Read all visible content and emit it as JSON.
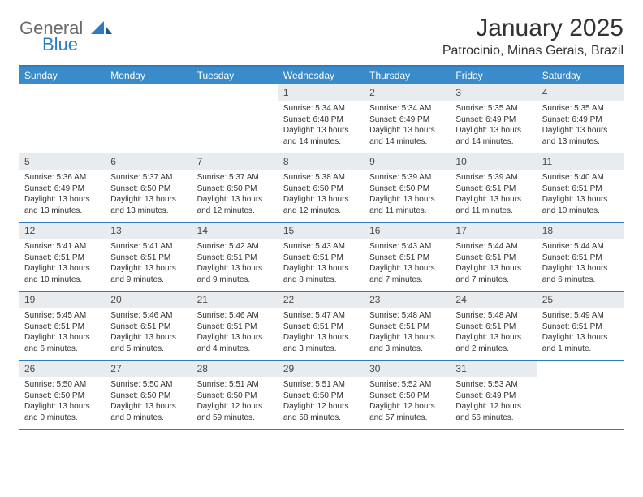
{
  "logo": {
    "text1": "General",
    "text2": "Blue"
  },
  "title": "January 2025",
  "location": "Patrocinio, Minas Gerais, Brazil",
  "colors": {
    "header_bg": "#3a8bca",
    "border": "#2d7bc0",
    "daynum_bg": "#e8ecef"
  },
  "dow": [
    "Sunday",
    "Monday",
    "Tuesday",
    "Wednesday",
    "Thursday",
    "Friday",
    "Saturday"
  ],
  "weeks": [
    [
      {
        "n": "",
        "sr": "",
        "ss": "",
        "dl": ""
      },
      {
        "n": "",
        "sr": "",
        "ss": "",
        "dl": ""
      },
      {
        "n": "",
        "sr": "",
        "ss": "",
        "dl": ""
      },
      {
        "n": "1",
        "sr": "Sunrise: 5:34 AM",
        "ss": "Sunset: 6:48 PM",
        "dl": "Daylight: 13 hours and 14 minutes."
      },
      {
        "n": "2",
        "sr": "Sunrise: 5:34 AM",
        "ss": "Sunset: 6:49 PM",
        "dl": "Daylight: 13 hours and 14 minutes."
      },
      {
        "n": "3",
        "sr": "Sunrise: 5:35 AM",
        "ss": "Sunset: 6:49 PM",
        "dl": "Daylight: 13 hours and 14 minutes."
      },
      {
        "n": "4",
        "sr": "Sunrise: 5:35 AM",
        "ss": "Sunset: 6:49 PM",
        "dl": "Daylight: 13 hours and 13 minutes."
      }
    ],
    [
      {
        "n": "5",
        "sr": "Sunrise: 5:36 AM",
        "ss": "Sunset: 6:49 PM",
        "dl": "Daylight: 13 hours and 13 minutes."
      },
      {
        "n": "6",
        "sr": "Sunrise: 5:37 AM",
        "ss": "Sunset: 6:50 PM",
        "dl": "Daylight: 13 hours and 13 minutes."
      },
      {
        "n": "7",
        "sr": "Sunrise: 5:37 AM",
        "ss": "Sunset: 6:50 PM",
        "dl": "Daylight: 13 hours and 12 minutes."
      },
      {
        "n": "8",
        "sr": "Sunrise: 5:38 AM",
        "ss": "Sunset: 6:50 PM",
        "dl": "Daylight: 13 hours and 12 minutes."
      },
      {
        "n": "9",
        "sr": "Sunrise: 5:39 AM",
        "ss": "Sunset: 6:50 PM",
        "dl": "Daylight: 13 hours and 11 minutes."
      },
      {
        "n": "10",
        "sr": "Sunrise: 5:39 AM",
        "ss": "Sunset: 6:51 PM",
        "dl": "Daylight: 13 hours and 11 minutes."
      },
      {
        "n": "11",
        "sr": "Sunrise: 5:40 AM",
        "ss": "Sunset: 6:51 PM",
        "dl": "Daylight: 13 hours and 10 minutes."
      }
    ],
    [
      {
        "n": "12",
        "sr": "Sunrise: 5:41 AM",
        "ss": "Sunset: 6:51 PM",
        "dl": "Daylight: 13 hours and 10 minutes."
      },
      {
        "n": "13",
        "sr": "Sunrise: 5:41 AM",
        "ss": "Sunset: 6:51 PM",
        "dl": "Daylight: 13 hours and 9 minutes."
      },
      {
        "n": "14",
        "sr": "Sunrise: 5:42 AM",
        "ss": "Sunset: 6:51 PM",
        "dl": "Daylight: 13 hours and 9 minutes."
      },
      {
        "n": "15",
        "sr": "Sunrise: 5:43 AM",
        "ss": "Sunset: 6:51 PM",
        "dl": "Daylight: 13 hours and 8 minutes."
      },
      {
        "n": "16",
        "sr": "Sunrise: 5:43 AM",
        "ss": "Sunset: 6:51 PM",
        "dl": "Daylight: 13 hours and 7 minutes."
      },
      {
        "n": "17",
        "sr": "Sunrise: 5:44 AM",
        "ss": "Sunset: 6:51 PM",
        "dl": "Daylight: 13 hours and 7 minutes."
      },
      {
        "n": "18",
        "sr": "Sunrise: 5:44 AM",
        "ss": "Sunset: 6:51 PM",
        "dl": "Daylight: 13 hours and 6 minutes."
      }
    ],
    [
      {
        "n": "19",
        "sr": "Sunrise: 5:45 AM",
        "ss": "Sunset: 6:51 PM",
        "dl": "Daylight: 13 hours and 6 minutes."
      },
      {
        "n": "20",
        "sr": "Sunrise: 5:46 AM",
        "ss": "Sunset: 6:51 PM",
        "dl": "Daylight: 13 hours and 5 minutes."
      },
      {
        "n": "21",
        "sr": "Sunrise: 5:46 AM",
        "ss": "Sunset: 6:51 PM",
        "dl": "Daylight: 13 hours and 4 minutes."
      },
      {
        "n": "22",
        "sr": "Sunrise: 5:47 AM",
        "ss": "Sunset: 6:51 PM",
        "dl": "Daylight: 13 hours and 3 minutes."
      },
      {
        "n": "23",
        "sr": "Sunrise: 5:48 AM",
        "ss": "Sunset: 6:51 PM",
        "dl": "Daylight: 13 hours and 3 minutes."
      },
      {
        "n": "24",
        "sr": "Sunrise: 5:48 AM",
        "ss": "Sunset: 6:51 PM",
        "dl": "Daylight: 13 hours and 2 minutes."
      },
      {
        "n": "25",
        "sr": "Sunrise: 5:49 AM",
        "ss": "Sunset: 6:51 PM",
        "dl": "Daylight: 13 hours and 1 minute."
      }
    ],
    [
      {
        "n": "26",
        "sr": "Sunrise: 5:50 AM",
        "ss": "Sunset: 6:50 PM",
        "dl": "Daylight: 13 hours and 0 minutes."
      },
      {
        "n": "27",
        "sr": "Sunrise: 5:50 AM",
        "ss": "Sunset: 6:50 PM",
        "dl": "Daylight: 13 hours and 0 minutes."
      },
      {
        "n": "28",
        "sr": "Sunrise: 5:51 AM",
        "ss": "Sunset: 6:50 PM",
        "dl": "Daylight: 12 hours and 59 minutes."
      },
      {
        "n": "29",
        "sr": "Sunrise: 5:51 AM",
        "ss": "Sunset: 6:50 PM",
        "dl": "Daylight: 12 hours and 58 minutes."
      },
      {
        "n": "30",
        "sr": "Sunrise: 5:52 AM",
        "ss": "Sunset: 6:50 PM",
        "dl": "Daylight: 12 hours and 57 minutes."
      },
      {
        "n": "31",
        "sr": "Sunrise: 5:53 AM",
        "ss": "Sunset: 6:49 PM",
        "dl": "Daylight: 12 hours and 56 minutes."
      },
      {
        "n": "",
        "sr": "",
        "ss": "",
        "dl": ""
      }
    ]
  ]
}
